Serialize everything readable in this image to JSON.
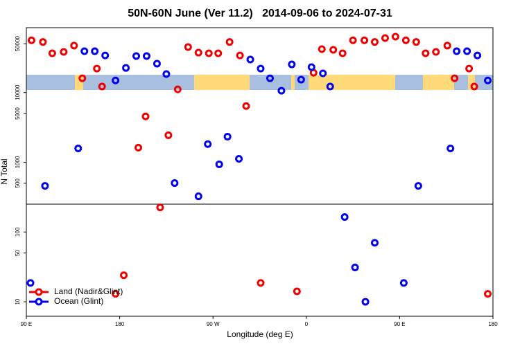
{
  "chart_data": {
    "type": "scatter",
    "title": "50N-60N June (Ver 11.2)   2014-09-06 to 2024-07-31",
    "x_label": "Longitude (deg E)",
    "y_label": "N Total",
    "xlim": [
      90,
      540
    ],
    "xticks": [
      {
        "value": 90,
        "label": "90 E"
      },
      {
        "value": 180,
        "label": "180"
      },
      {
        "value": 270,
        "label": "90 W"
      },
      {
        "value": 360,
        "label": "0"
      },
      {
        "value": 450,
        "label": "90 E"
      },
      {
        "value": 540,
        "label": "180"
      }
    ],
    "ylim": [
      6.2,
      85000
    ],
    "y_log": true,
    "yticks": [
      10,
      50,
      100,
      500,
      1000,
      5000,
      10000,
      50000
    ],
    "legend": "lower left",
    "series": [
      {
        "name": "Land (Nadir&Glint)",
        "color": "#ee0000",
        "x": [
          95,
          106,
          115,
          126,
          136,
          144,
          158,
          163,
          176,
          184,
          198,
          205,
          219,
          227,
          236,
          246,
          256,
          266,
          275,
          286,
          296,
          302,
          316,
          351,
          367,
          375,
          386,
          395,
          405,
          416,
          426,
          436,
          446,
          456,
          466,
          475,
          485,
          496,
          503,
          517,
          522,
          535
        ],
        "values": [
          56000,
          53000,
          36500,
          38200,
          47000,
          16000,
          22000,
          12200,
          13,
          24,
          1620,
          4540,
          225,
          2440,
          11100,
          44900,
          37300,
          36500,
          36500,
          53000,
          34000,
          6400,
          18.6,
          14.1,
          19200,
          41900,
          40900,
          36500,
          56000,
          56000,
          53000,
          60400,
          63200,
          56000,
          53000,
          36500,
          38200,
          47000,
          16000,
          22000,
          12200,
          13
        ]
      },
      {
        "name": "Ocean (Glint)",
        "color": "#0000ee",
        "x": [
          94,
          108,
          140,
          146,
          156,
          166,
          176,
          186,
          196,
          206,
          216,
          225,
          233,
          256,
          265,
          276,
          284,
          295,
          306,
          316,
          325,
          336,
          346,
          355,
          365,
          376,
          383,
          397,
          407,
          417,
          426,
          454,
          468,
          499,
          505,
          515,
          525,
          535
        ],
        "values": [
          18.6,
          459,
          1580,
          39100,
          39100,
          34000,
          14900,
          22500,
          33300,
          33300,
          25900,
          18400,
          503,
          325,
          1820,
          933,
          2330,
          1120,
          29700,
          22000,
          16000,
          10600,
          25300,
          15300,
          23100,
          18800,
          12200,
          164,
          31,
          10,
          70,
          18.6,
          459,
          1580,
          39100,
          39100,
          34000,
          14900
        ]
      }
    ]
  }
}
